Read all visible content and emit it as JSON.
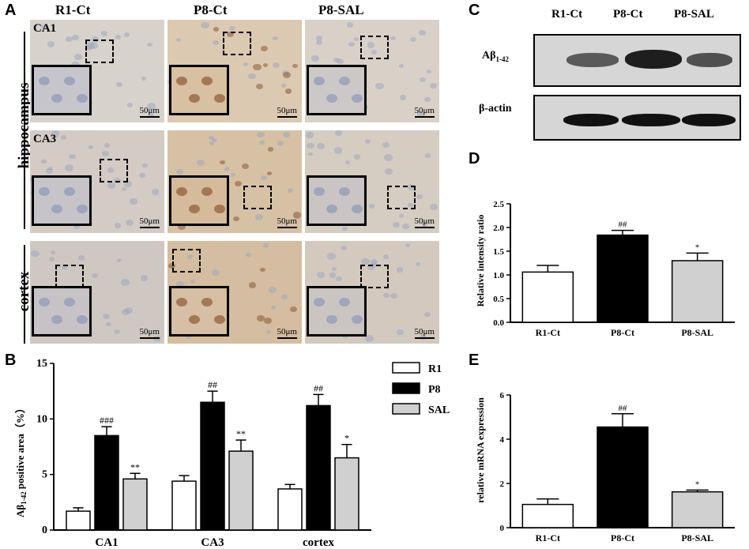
{
  "figure": {
    "panel_letters": {
      "a": "A",
      "b": "B",
      "c": "C",
      "d": "D",
      "e": "E"
    },
    "panel_a": {
      "column_headers": [
        "R1-Ct",
        "P8-Ct",
        "P8-SAL"
      ],
      "region_labels": [
        "hippocampus",
        "cortex"
      ],
      "tile_labels": [
        "CA1",
        "CA3"
      ],
      "scale_bar": "50μm"
    },
    "panel_c": {
      "column_headers": [
        "R1-Ct",
        "P8-Ct",
        "P8-SAL"
      ],
      "row_labels": {
        "abeta_main": "Aβ",
        "abeta_sub": "1-42",
        "actin": "β-actin"
      },
      "abeta_intensity": [
        0.55,
        0.85,
        0.6
      ]
    }
  },
  "chart_data": [
    {
      "panel": "B",
      "type": "bar",
      "categories": [
        "CA1",
        "CA3",
        "cortex"
      ],
      "series": [
        {
          "name": "R1",
          "values": [
            1.7,
            4.4,
            3.7
          ],
          "errors": [
            0.3,
            0.5,
            0.4
          ],
          "color": "#ffffff"
        },
        {
          "name": "P8",
          "values": [
            8.5,
            11.5,
            11.2
          ],
          "errors": [
            0.8,
            1.0,
            1.0
          ],
          "color": "#000000"
        },
        {
          "name": "SAL",
          "values": [
            4.6,
            7.1,
            6.5
          ],
          "errors": [
            0.5,
            1.0,
            1.2
          ],
          "color": "#d0d0d0"
        }
      ],
      "annotations": [
        [
          "",
          "###",
          "**"
        ],
        [
          "",
          "##",
          "**"
        ],
        [
          "",
          "##",
          "*"
        ]
      ],
      "ylabel_main": "Aβ",
      "ylabel_sub": "1-42",
      "ylabel_rest": "positive area（%）",
      "ylim": [
        0,
        15
      ],
      "yticks": [
        "0",
        "5",
        "10",
        "15"
      ],
      "legend": "top-right"
    },
    {
      "panel": "D",
      "type": "bar",
      "categories": [
        "R1-Ct",
        "P8-Ct",
        "P8-SAL"
      ],
      "values": [
        1.06,
        1.84,
        1.3
      ],
      "errors": [
        0.14,
        0.1,
        0.16
      ],
      "colors": [
        "#ffffff",
        "#000000",
        "#d0d0d0"
      ],
      "annotations": [
        "",
        "##",
        "*"
      ],
      "ylabel": "Relative intensity ratio",
      "ylim": [
        0,
        2.5
      ],
      "yticks": [
        "0.0",
        "0.5",
        "1.0",
        "1.5",
        "2.0",
        "2.5"
      ]
    },
    {
      "panel": "E",
      "type": "bar",
      "categories": [
        "R1-Ct",
        "P8-Ct",
        "P8-SAL"
      ],
      "values": [
        1.05,
        4.55,
        1.62
      ],
      "errors": [
        0.25,
        0.6,
        0.08
      ],
      "colors": [
        "#ffffff",
        "#000000",
        "#d0d0d0"
      ],
      "annotations": [
        "",
        "##",
        "*"
      ],
      "ylabel": "relative mRNA expression",
      "ylim": [
        0,
        6
      ],
      "yticks": [
        "0",
        "2",
        "4",
        "6"
      ]
    }
  ]
}
